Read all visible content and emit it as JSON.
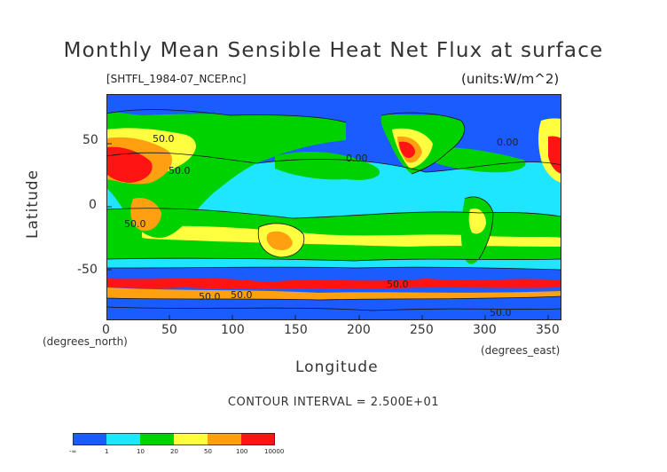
{
  "title": "Monthly Mean Sensible Heat Net Flux at surface",
  "file_label": "[SHTFL_1984-07_NCEP.nc]",
  "units_label": "(units:W/m^2)",
  "contour_interval": "CONTOUR INTERVAL = 2.500E+01",
  "axes": {
    "xlabel": "Longitude",
    "ylabel": "Latitude",
    "x_units": "(degrees_east)",
    "y_units": "(degrees_north)",
    "xticks": [
      "0",
      "50",
      "100",
      "150",
      "200",
      "250",
      "300",
      "350"
    ],
    "yticks": [
      "50",
      "0",
      "-50"
    ],
    "xlim": [
      0,
      360
    ],
    "ylim": [
      -90,
      90
    ]
  },
  "legend": {
    "labels": [
      "-∞",
      "1",
      "10",
      "20",
      "50",
      "100",
      "10000"
    ],
    "colors": [
      "#1a5cff",
      "#1ee6ff",
      "#00d200",
      "#ffff40",
      "#ffa010",
      "#ff1414"
    ]
  },
  "contour_labels": [
    "50.0",
    "50.0",
    "0.00",
    "0.00",
    "50.0",
    "50.0",
    "50.0",
    "50.0",
    "50.0"
  ],
  "colors": {
    "ocean_low": "#1a5cff",
    "cyan": "#1ee6ff",
    "green": "#00d200",
    "yellow": "#ffff40",
    "orange": "#ffa010",
    "red": "#ff1414"
  }
}
